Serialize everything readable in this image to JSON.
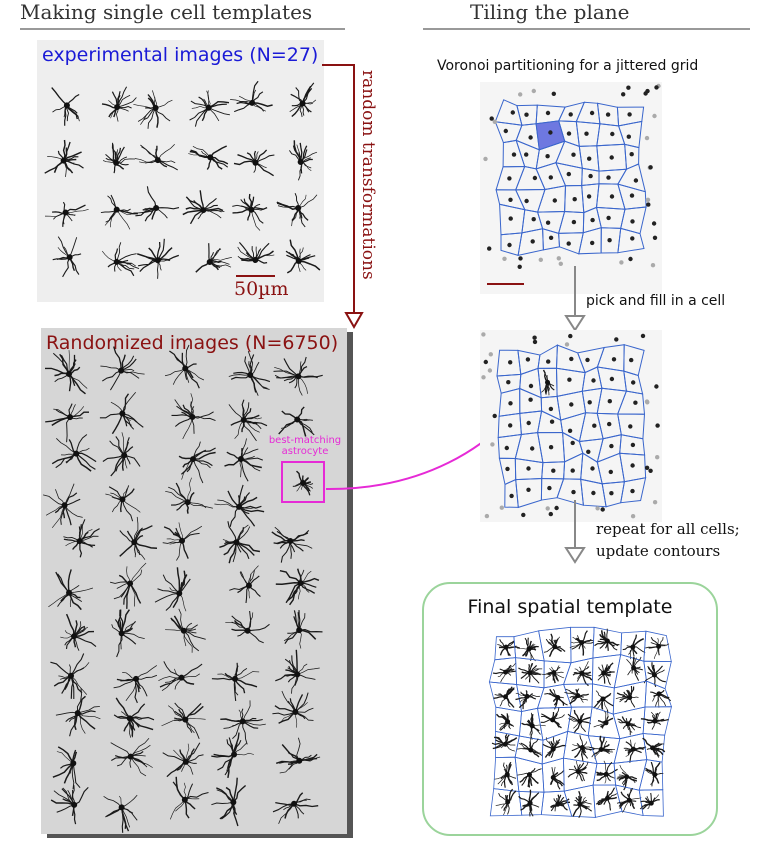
{
  "left_header": "Making single cell templates",
  "right_header": "Tiling the plane",
  "experimental_label": "experimental images  (N=27)",
  "scale_label": "50µm",
  "random_transform_label": "random transformations",
  "randomized_label": "Randomized images (N=6750)",
  "best_match_label_1": "best-matching",
  "best_match_label_2": "astrocyte",
  "voronoi_label": "Voronoi partitioning  for a jittered grid",
  "pick_fill_label": "pick and fill in a cell",
  "repeat_label_1": "repeat for all cells;",
  "repeat_label_2": "update contours",
  "final_label": "Final spatial template",
  "colors": {
    "blue_text": "#1a1ad6",
    "red_text": "#8a1212",
    "magenta": "#e62ad6",
    "voronoi_line": "#3a66cc",
    "highlight_cell": "#6e78e0",
    "final_border": "#9bd49b"
  }
}
